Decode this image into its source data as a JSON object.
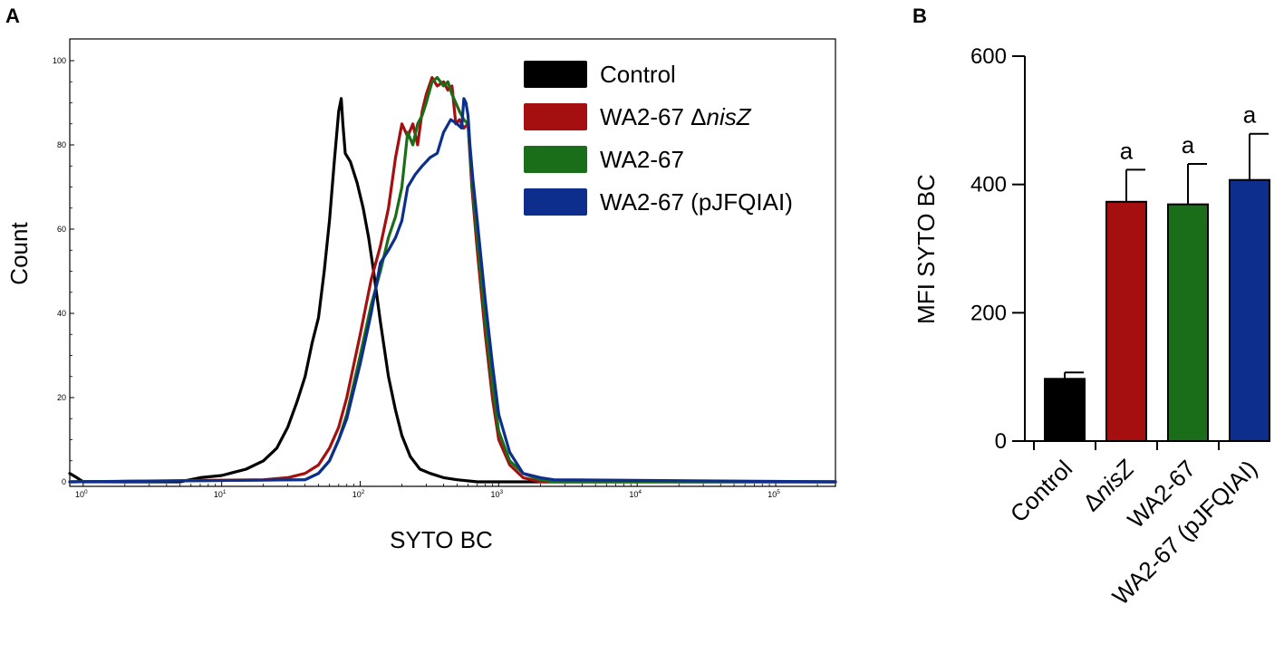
{
  "chart_data": [
    {
      "panel": "A",
      "type": "line",
      "xlabel": "SYTO BC",
      "ylabel": "Count",
      "xscale": "log",
      "xlim": [
        0.8,
        270000
      ],
      "ylim": [
        0,
        100
      ],
      "y_ticks": [
        "0",
        "20",
        "40",
        "60",
        "80",
        "100"
      ],
      "x_ticks": [
        {
          "base": "10",
          "exp": "0",
          "value": 1
        },
        {
          "base": "10",
          "exp": "1",
          "value": 10
        },
        {
          "base": "10",
          "exp": "2",
          "value": 100
        },
        {
          "base": "10",
          "exp": "3",
          "value": 1000
        },
        {
          "base": "10",
          "exp": "4",
          "value": 10000
        },
        {
          "base": "10",
          "exp": "5",
          "value": 100000
        }
      ],
      "legend_position": "top-right",
      "series": [
        {
          "name": "Control",
          "name_main": "Control",
          "name_italic": "",
          "color": "#000000",
          "x": [
            0.8,
            0.9,
            1.0,
            5,
            7,
            10,
            15,
            20,
            25,
            30,
            35,
            40,
            45,
            50,
            55,
            60,
            65,
            70,
            73,
            75,
            78,
            85,
            95,
            105,
            115,
            125,
            140,
            160,
            180,
            200,
            230,
            270,
            320,
            400,
            500,
            700,
            1000,
            1500,
            3000,
            270000
          ],
          "y": [
            2,
            1,
            0,
            0,
            1,
            1.5,
            3,
            5,
            8,
            13,
            19,
            25,
            33,
            39,
            50,
            62,
            76,
            88,
            91,
            85,
            78,
            76,
            71,
            65,
            58,
            50,
            38,
            25,
            17,
            11,
            6,
            3,
            2,
            1,
            0.5,
            0,
            0,
            0,
            0,
            0
          ]
        },
        {
          "name": "WA2-67 ΔnisZ",
          "name_main": "WA2-67 Δ",
          "name_italic": "nisZ",
          "color": "#a50f0f",
          "x": [
            0.8,
            20,
            30,
            40,
            50,
            60,
            70,
            80,
            100,
            120,
            140,
            160,
            180,
            200,
            220,
            240,
            260,
            280,
            300,
            330,
            360,
            400,
            430,
            460,
            490,
            520,
            560,
            600,
            640,
            700,
            800,
            900,
            1000,
            1200,
            1500,
            2000,
            2500,
            270000
          ],
          "y": [
            0,
            0.5,
            1,
            2,
            4,
            8,
            13,
            20,
            35,
            48,
            56,
            65,
            77,
            85,
            82,
            85,
            80,
            88,
            92,
            96,
            94,
            95,
            93,
            94,
            85,
            86,
            84,
            85,
            70,
            55,
            35,
            20,
            10,
            4,
            1,
            0,
            0,
            0
          ]
        },
        {
          "name": "WA2-67",
          "name_main": "WA2-67",
          "name_italic": "",
          "color": "#1a6e1a",
          "x": [
            0.8,
            40,
            50,
            60,
            70,
            80,
            100,
            120,
            140,
            160,
            180,
            200,
            220,
            240,
            260,
            280,
            300,
            330,
            360,
            400,
            430,
            460,
            490,
            520,
            560,
            600,
            640,
            700,
            800,
            900,
            1000,
            1200,
            1500,
            2000,
            2500,
            270000
          ],
          "y": [
            0,
            0.5,
            2,
            5,
            10,
            16,
            30,
            42,
            50,
            58,
            63,
            70,
            83,
            80,
            85,
            87,
            90,
            95,
            96,
            94,
            95,
            92,
            90,
            88,
            86,
            85,
            72,
            58,
            38,
            23,
            12,
            5,
            2,
            0.5,
            0,
            0
          ]
        },
        {
          "name": "WA2-67 (pJFQIAI)",
          "name_main": "WA2-67 (pJFQIAI)",
          "name_italic": "",
          "color": "#0d2e8c",
          "x": [
            0.8,
            40,
            50,
            60,
            70,
            80,
            100,
            120,
            140,
            160,
            180,
            200,
            220,
            250,
            280,
            320,
            360,
            400,
            450,
            500,
            540,
            560,
            580,
            600,
            620,
            650,
            700,
            800,
            900,
            1000,
            1200,
            1500,
            2000,
            2500,
            270000
          ],
          "y": [
            0,
            0.5,
            2,
            5,
            10,
            15,
            28,
            40,
            52,
            55,
            58,
            62,
            70,
            73,
            75,
            77,
            78,
            83,
            86,
            85,
            84,
            91,
            90,
            87,
            80,
            72,
            62,
            43,
            28,
            16,
            7,
            2,
            1,
            0.5,
            0
          ]
        }
      ]
    },
    {
      "panel": "B",
      "type": "bar",
      "ylabel": "MFI SYTO BC",
      "xlabel": "",
      "ylim": [
        0,
        600
      ],
      "y_ticks": [
        "0",
        "200",
        "400",
        "600"
      ],
      "categories": [
        {
          "main": "Control",
          "italic": ""
        },
        {
          "main": "Δ",
          "italic": "nisZ"
        },
        {
          "main": "WA2-67",
          "italic": ""
        },
        {
          "main": "WA2-67 (pJFQIAI)",
          "italic": ""
        }
      ],
      "values": [
        97,
        373,
        369,
        407
      ],
      "errors": [
        10,
        50,
        63,
        72
      ],
      "colors": [
        "#000000",
        "#a50f0f",
        "#1a6e1a",
        "#0d2e8c"
      ],
      "significance": [
        "",
        "a",
        "a",
        "a"
      ]
    }
  ],
  "labels": {
    "panel_a": "A",
    "panel_b": "B"
  }
}
